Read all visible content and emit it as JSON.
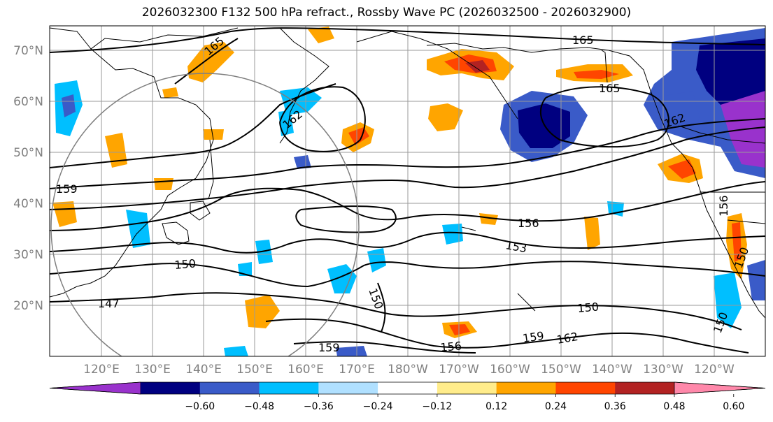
{
  "title": "2026032300 F132 500 hPa refract., Rossby Wave PC (2026032500 - 2026032900)",
  "lat_labels": [
    "70°N",
    "60°N",
    "50°N",
    "40°N",
    "30°N",
    "20°N"
  ],
  "lon_labels": [
    "120°E",
    "130°E",
    "140°E",
    "150°E",
    "160°E",
    "170°E",
    "180°W",
    "170°W",
    "160°W",
    "150°W",
    "140°W",
    "130°W",
    "120°W"
  ],
  "contour_labels": [
    "165",
    "165",
    "165",
    "162",
    "162",
    "159",
    "156",
    "153",
    "150",
    "150",
    "147",
    "150",
    "150",
    "159",
    "156",
    "159",
    "162",
    "156",
    "150"
  ],
  "colorbar": {
    "colors": [
      "#9932cc",
      "#000080",
      "#3a5bc8",
      "#00bfff",
      "#b0e0ff",
      "#ffffff",
      "#ffec8b",
      "#ffa500",
      "#ff4500",
      "#b22222",
      "#ff88aa"
    ],
    "tick_labels": [
      "−0.60",
      "−0.48",
      "−0.36",
      "−0.24",
      "−0.12",
      "0.12",
      "0.24",
      "0.36",
      "0.48",
      "0.60"
    ]
  }
}
